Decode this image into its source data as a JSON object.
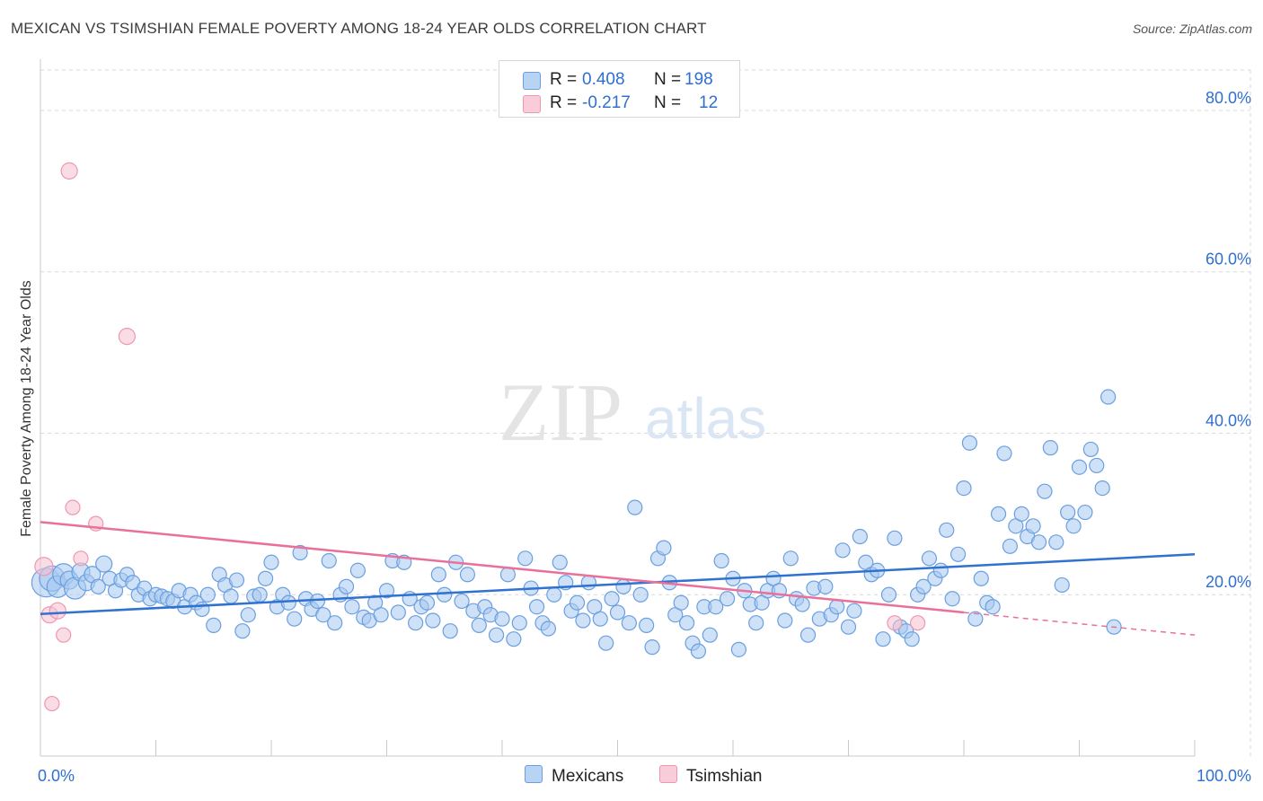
{
  "title": "MEXICAN VS TSIMSHIAN FEMALE POVERTY AMONG 18-24 YEAR OLDS CORRELATION CHART",
  "source": "Source: ZipAtlas.com",
  "watermark": {
    "zip": "ZIP",
    "atlas": "atlas"
  },
  "legend": {
    "mexicans": {
      "r_label": "R =",
      "r_value": "0.408",
      "n_label": "N =",
      "n_value": "198"
    },
    "tsimshian": {
      "r_label": "R =",
      "r_value": "-0.217",
      "n_label": "N =",
      "n_value": "12"
    }
  },
  "bottom_legend": {
    "mexicans": "Mexicans",
    "tsimshian": "Tsimshian"
  },
  "colors": {
    "mexicans_fill": "#a8c8f0",
    "mexicans_stroke": "#6a9fe0",
    "mexicans_line": "#2f72d0",
    "tsimshian_fill": "#f6bfd0",
    "tsimshian_stroke": "#ee97b2",
    "tsimshian_line": "#e8709a",
    "axis_text": "#2f6fd0",
    "grid": "#d9d9d9"
  },
  "chart_data": {
    "type": "scatter",
    "title": "MEXICAN VS TSIMSHIAN FEMALE POVERTY AMONG 18-24 YEAR OLDS CORRELATION CHART",
    "xlabel": "",
    "ylabel": "Female Poverty Among 18-24 Year Olds",
    "xlim": [
      0,
      100
    ],
    "ylim": [
      0,
      85
    ],
    "x_tick_labels": [
      "0.0%",
      "100.0%"
    ],
    "y_ticks": [
      20,
      40,
      60,
      80
    ],
    "y_tick_labels": [
      "20.0%",
      "40.0%",
      "60.0%",
      "80.0%"
    ],
    "grid": true,
    "legend_placement": "top-center",
    "series": [
      {
        "name": "Mexicans",
        "r": 0.408,
        "n": 198,
        "trend": {
          "x": [
            0,
            100
          ],
          "y": [
            17.6,
            25.0
          ]
        },
        "points": [
          [
            0.5,
            21.5,
            16
          ],
          [
            1.0,
            22.0,
            14
          ],
          [
            1.5,
            21.0,
            12
          ],
          [
            2.0,
            22.5,
            12
          ],
          [
            2.5,
            21.8,
            10
          ],
          [
            3.0,
            20.8,
            12
          ],
          [
            3.5,
            22.8,
            10
          ],
          [
            4.0,
            21.5,
            9
          ],
          [
            4.5,
            22.5,
            9
          ],
          [
            5.0,
            21.0,
            8
          ],
          [
            5.5,
            23.8,
            9
          ],
          [
            6.0,
            22.0,
            8
          ],
          [
            6.5,
            20.5,
            8
          ],
          [
            7.0,
            21.8,
            8
          ],
          [
            7.5,
            22.5,
            8
          ],
          [
            8.0,
            21.5,
            8
          ],
          [
            8.5,
            20.0,
            8
          ],
          [
            9.0,
            20.8,
            8
          ],
          [
            9.5,
            19.5,
            8
          ],
          [
            10.0,
            20.0,
            8
          ],
          [
            10.5,
            19.8,
            8
          ],
          [
            11.0,
            19.5,
            8
          ],
          [
            11.5,
            19.2,
            8
          ],
          [
            12.0,
            20.5,
            8
          ],
          [
            12.5,
            18.5,
            8
          ],
          [
            13.0,
            20.0,
            8
          ],
          [
            13.5,
            19.0,
            8
          ],
          [
            14.0,
            18.2,
            8
          ],
          [
            14.5,
            20.0,
            8
          ],
          [
            15.0,
            16.2,
            8
          ],
          [
            15.5,
            22.5,
            8
          ],
          [
            16.0,
            21.2,
            8
          ],
          [
            16.5,
            19.8,
            8
          ],
          [
            17.0,
            21.8,
            8
          ],
          [
            17.5,
            15.5,
            8
          ],
          [
            18.0,
            17.5,
            8
          ],
          [
            18.5,
            19.8,
            8
          ],
          [
            19.0,
            20.0,
            8
          ],
          [
            19.5,
            22.0,
            8
          ],
          [
            20.0,
            24.0,
            8
          ],
          [
            20.5,
            18.5,
            8
          ],
          [
            21.0,
            20.0,
            8
          ],
          [
            21.5,
            19.0,
            8
          ],
          [
            22.0,
            17.0,
            8
          ],
          [
            22.5,
            25.2,
            8
          ],
          [
            23.0,
            19.5,
            8
          ],
          [
            23.5,
            18.2,
            8
          ],
          [
            24.0,
            19.2,
            8
          ],
          [
            24.5,
            17.5,
            8
          ],
          [
            25.0,
            24.2,
            8
          ],
          [
            25.5,
            16.5,
            8
          ],
          [
            26.0,
            20.0,
            8
          ],
          [
            26.5,
            21.0,
            8
          ],
          [
            27.0,
            18.5,
            8
          ],
          [
            27.5,
            23.0,
            8
          ],
          [
            28.0,
            17.2,
            8
          ],
          [
            28.5,
            16.8,
            8
          ],
          [
            29.0,
            19.0,
            8
          ],
          [
            29.5,
            17.5,
            8
          ],
          [
            30.0,
            20.5,
            8
          ],
          [
            30.5,
            24.2,
            8
          ],
          [
            31.0,
            17.8,
            8
          ],
          [
            31.5,
            24.0,
            8
          ],
          [
            32.0,
            19.5,
            8
          ],
          [
            32.5,
            16.5,
            8
          ],
          [
            33.0,
            18.5,
            8
          ],
          [
            33.5,
            19.0,
            8
          ],
          [
            34.0,
            16.8,
            8
          ],
          [
            34.5,
            22.5,
            8
          ],
          [
            35.0,
            20.0,
            8
          ],
          [
            35.5,
            15.5,
            8
          ],
          [
            36.0,
            24.0,
            8
          ],
          [
            36.5,
            19.2,
            8
          ],
          [
            37.0,
            22.5,
            8
          ],
          [
            37.5,
            18.0,
            8
          ],
          [
            38.0,
            16.2,
            8
          ],
          [
            38.5,
            18.5,
            8
          ],
          [
            39.0,
            17.5,
            8
          ],
          [
            39.5,
            15.0,
            8
          ],
          [
            40.0,
            17.0,
            8
          ],
          [
            40.5,
            22.5,
            8
          ],
          [
            41.0,
            14.5,
            8
          ],
          [
            41.5,
            16.5,
            8
          ],
          [
            42.0,
            24.5,
            8
          ],
          [
            42.5,
            20.8,
            8
          ],
          [
            43.0,
            18.5,
            8
          ],
          [
            43.5,
            16.5,
            8
          ],
          [
            44.0,
            15.8,
            8
          ],
          [
            44.5,
            20.0,
            8
          ],
          [
            45.0,
            24.0,
            8
          ],
          [
            45.5,
            21.5,
            8
          ],
          [
            46.0,
            18.0,
            8
          ],
          [
            46.5,
            19.0,
            8
          ],
          [
            47.0,
            16.8,
            8
          ],
          [
            47.5,
            21.5,
            8
          ],
          [
            48.0,
            18.5,
            8
          ],
          [
            48.5,
            17.0,
            8
          ],
          [
            49.0,
            14.0,
            8
          ],
          [
            49.5,
            19.5,
            8
          ],
          [
            50.0,
            17.8,
            8
          ],
          [
            50.5,
            21.0,
            8
          ],
          [
            51.0,
            16.5,
            8
          ],
          [
            51.5,
            30.8,
            8
          ],
          [
            52.0,
            20.0,
            8
          ],
          [
            52.5,
            16.2,
            8
          ],
          [
            53.0,
            13.5,
            8
          ],
          [
            53.5,
            24.5,
            8
          ],
          [
            54.0,
            25.8,
            8
          ],
          [
            54.5,
            21.5,
            8
          ],
          [
            55.0,
            17.5,
            8
          ],
          [
            55.5,
            19.0,
            8
          ],
          [
            56.0,
            16.5,
            8
          ],
          [
            56.5,
            14.0,
            8
          ],
          [
            57.0,
            13.0,
            8
          ],
          [
            57.5,
            18.5,
            8
          ],
          [
            58.0,
            15.0,
            8
          ],
          [
            58.5,
            18.5,
            8
          ],
          [
            59.0,
            24.2,
            8
          ],
          [
            59.5,
            19.5,
            8
          ],
          [
            60.0,
            22.0,
            8
          ],
          [
            60.5,
            13.2,
            8
          ],
          [
            61.0,
            20.5,
            8
          ],
          [
            61.5,
            18.8,
            8
          ],
          [
            62.0,
            16.5,
            8
          ],
          [
            62.5,
            19.0,
            8
          ],
          [
            63.0,
            20.5,
            8
          ],
          [
            63.5,
            22.0,
            8
          ],
          [
            64.0,
            20.5,
            8
          ],
          [
            64.5,
            16.8,
            8
          ],
          [
            65.0,
            24.5,
            8
          ],
          [
            65.5,
            19.5,
            8
          ],
          [
            66.0,
            18.8,
            8
          ],
          [
            66.5,
            15.0,
            8
          ],
          [
            67.0,
            20.8,
            8
          ],
          [
            67.5,
            17.0,
            8
          ],
          [
            68.0,
            21.0,
            8
          ],
          [
            68.5,
            17.5,
            8
          ],
          [
            69.0,
            18.5,
            8
          ],
          [
            69.5,
            25.5,
            8
          ],
          [
            70.0,
            16.0,
            8
          ],
          [
            70.5,
            18.0,
            8
          ],
          [
            71.0,
            27.2,
            8
          ],
          [
            71.5,
            24.0,
            8
          ],
          [
            72.0,
            22.5,
            8
          ],
          [
            72.5,
            23.0,
            8
          ],
          [
            73.0,
            14.5,
            8
          ],
          [
            73.5,
            20.0,
            8
          ],
          [
            74.0,
            27.0,
            8
          ],
          [
            74.5,
            16.0,
            8
          ],
          [
            75.0,
            15.5,
            8
          ],
          [
            75.5,
            14.5,
            8
          ],
          [
            76.0,
            20.0,
            8
          ],
          [
            76.5,
            21.0,
            8
          ],
          [
            77.0,
            24.5,
            8
          ],
          [
            77.5,
            22.0,
            8
          ],
          [
            78.0,
            23.0,
            8
          ],
          [
            78.5,
            28.0,
            8
          ],
          [
            79.0,
            19.5,
            8
          ],
          [
            79.5,
            25.0,
            8
          ],
          [
            80.0,
            33.2,
            8
          ],
          [
            80.5,
            38.8,
            8
          ],
          [
            81.0,
            17.0,
            8
          ],
          [
            81.5,
            22.0,
            8
          ],
          [
            82.0,
            19.0,
            8
          ],
          [
            82.5,
            18.5,
            8
          ],
          [
            83.0,
            30.0,
            8
          ],
          [
            83.5,
            37.5,
            8
          ],
          [
            84.0,
            26.0,
            8
          ],
          [
            84.5,
            28.5,
            8
          ],
          [
            85.0,
            30.0,
            8
          ],
          [
            85.5,
            27.2,
            8
          ],
          [
            86.0,
            28.5,
            8
          ],
          [
            86.5,
            26.5,
            8
          ],
          [
            87.0,
            32.8,
            8
          ],
          [
            87.5,
            38.2,
            8
          ],
          [
            88.0,
            26.5,
            8
          ],
          [
            88.5,
            21.2,
            8
          ],
          [
            89.0,
            30.2,
            8
          ],
          [
            89.5,
            28.5,
            8
          ],
          [
            90.0,
            35.8,
            8
          ],
          [
            90.5,
            30.2,
            8
          ],
          [
            91.0,
            38.0,
            8
          ],
          [
            91.5,
            36.0,
            8
          ],
          [
            92.0,
            33.2,
            8
          ],
          [
            92.5,
            44.5,
            8
          ],
          [
            93.0,
            16.0,
            8
          ]
        ]
      },
      {
        "name": "Tsimshian",
        "r": -0.217,
        "n": 12,
        "trend": {
          "x": [
            0,
            80
          ],
          "y": [
            29.0,
            17.8
          ]
        },
        "trend_dashed": {
          "x": [
            80,
            100
          ],
          "y": [
            17.8,
            15.0
          ]
        },
        "points": [
          [
            0.3,
            23.5,
            10
          ],
          [
            0.8,
            17.5,
            9
          ],
          [
            1.5,
            18.0,
            9
          ],
          [
            2.5,
            72.5,
            9
          ],
          [
            7.5,
            52.0,
            9
          ],
          [
            2.0,
            15.0,
            8
          ],
          [
            2.8,
            30.8,
            8
          ],
          [
            4.8,
            28.8,
            8
          ],
          [
            1.0,
            6.5,
            8
          ],
          [
            3.5,
            24.5,
            8
          ],
          [
            74.0,
            16.5,
            8
          ],
          [
            76.0,
            16.5,
            8
          ]
        ]
      }
    ]
  }
}
